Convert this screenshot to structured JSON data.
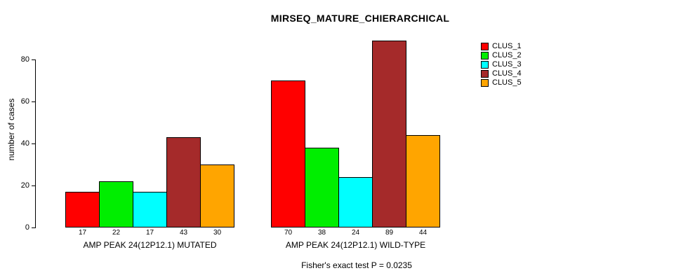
{
  "title": "MIRSEQ_MATURE_CHIERARCHICAL",
  "subtitle": "Fisher's exact test P = 0.0235",
  "ylabel": "number of cases",
  "chart_data": {
    "type": "bar",
    "title": "MIRSEQ_MATURE_CHIERARCHICAL",
    "xlabel": "",
    "ylabel": "number of cases",
    "ylim": [
      0,
      80
    ],
    "yticks": [
      0,
      20,
      40,
      60,
      80
    ],
    "grid": false,
    "legend_position": "right",
    "categories": [
      "AMP PEAK 24(12P12.1) MUTATED",
      "AMP PEAK 24(12P12.1) WILD-TYPE"
    ],
    "series": [
      {
        "name": "CLUS_1",
        "color": "#ff0000",
        "values": [
          17,
          70
        ]
      },
      {
        "name": "CLUS_2",
        "color": "#00ee00",
        "values": [
          22,
          38
        ]
      },
      {
        "name": "CLUS_3",
        "color": "#00ffff",
        "values": [
          17,
          24
        ]
      },
      {
        "name": "CLUS_4",
        "color": "#a52a2a",
        "values": [
          43,
          89
        ]
      },
      {
        "name": "CLUS_5",
        "color": "#ffa500",
        "values": [
          30,
          44
        ]
      }
    ],
    "bar_value_labels": [
      [
        17,
        22,
        17,
        43,
        30
      ],
      [
        70,
        38,
        24,
        89,
        44
      ]
    ],
    "annotation": "Fisher's exact test P = 0.0235"
  }
}
